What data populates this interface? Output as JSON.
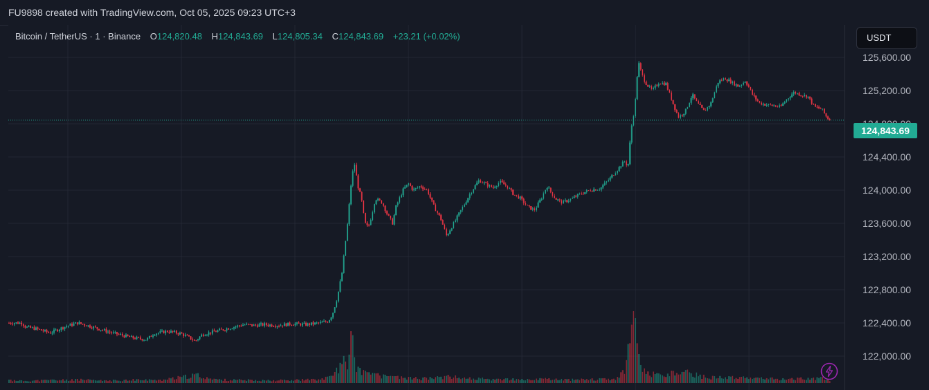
{
  "header": {
    "caption": "FU9898 created with TradingView.com, Oct 05, 2025 09:23 UTC+3"
  },
  "legend": {
    "symbol": "Bitcoin / TetherUS · 1 · Binance",
    "open_label": "O",
    "open": "124,820.48",
    "high_label": "H",
    "high": "124,843.69",
    "low_label": "L",
    "low": "124,805.34",
    "close_label": "C",
    "close": "124,843.69",
    "change": "+23.21 (+0.02%)"
  },
  "currency_button": "USDT",
  "last_price_label": "124,843.69",
  "colors": {
    "up": "#22ab94",
    "down": "#f23645",
    "background": "#161a25",
    "grid": "#232734",
    "axis_text": "#b2b5be",
    "accent_purple": "#9c27b0"
  },
  "icons": {
    "alert": "lightning-icon"
  },
  "chart_data": {
    "type": "candlestick",
    "title": "Bitcoin / TetherUS · 1 · Binance",
    "xlabel": "",
    "ylabel": "",
    "ylim": [
      121900,
      125900
    ],
    "yticks": [
      "125,600.00",
      "125,200.00",
      "124,800.00",
      "124,400.00",
      "124,000.00",
      "123,600.00",
      "123,200.00",
      "122,800.00",
      "122,400.00",
      "122,000.00"
    ],
    "ytick_values": [
      125600,
      125200,
      124800,
      124400,
      124000,
      123600,
      123200,
      122800,
      122400,
      122000
    ],
    "last_price": 124843.69,
    "grid": true,
    "close_path": [
      [
        0,
        122400
      ],
      [
        20,
        122400
      ],
      [
        25,
        122350
      ],
      [
        40,
        122330
      ],
      [
        60,
        122280
      ],
      [
        80,
        122350
      ],
      [
        100,
        122400
      ],
      [
        110,
        122380
      ],
      [
        130,
        122330
      ],
      [
        150,
        122280
      ],
      [
        165,
        122250
      ],
      [
        180,
        122220
      ],
      [
        200,
        122200
      ],
      [
        210,
        122270
      ],
      [
        230,
        122300
      ],
      [
        250,
        122270
      ],
      [
        262,
        122220
      ],
      [
        270,
        122180
      ],
      [
        280,
        122260
      ],
      [
        300,
        122300
      ],
      [
        320,
        122340
      ],
      [
        340,
        122380
      ],
      [
        355,
        122370
      ],
      [
        370,
        122380
      ],
      [
        390,
        122370
      ],
      [
        410,
        122390
      ],
      [
        430,
        122380
      ],
      [
        450,
        122400
      ],
      [
        462,
        122420
      ],
      [
        468,
        122500
      ],
      [
        475,
        122700
      ],
      [
        482,
        123000
      ],
      [
        490,
        123600
      ],
      [
        496,
        124150
      ],
      [
        500,
        124320
      ],
      [
        505,
        124050
      ],
      [
        510,
        123900
      ],
      [
        515,
        123600
      ],
      [
        520,
        123550
      ],
      [
        525,
        123700
      ],
      [
        530,
        123900
      ],
      [
        540,
        123850
      ],
      [
        548,
        123700
      ],
      [
        555,
        123600
      ],
      [
        560,
        123800
      ],
      [
        570,
        124000
      ],
      [
        578,
        124080
      ],
      [
        585,
        124000
      ],
      [
        595,
        124050
      ],
      [
        605,
        124000
      ],
      [
        615,
        123800
      ],
      [
        625,
        123650
      ],
      [
        633,
        123450
      ],
      [
        640,
        123550
      ],
      [
        650,
        123700
      ],
      [
        660,
        123850
      ],
      [
        670,
        124000
      ],
      [
        680,
        124120
      ],
      [
        690,
        124070
      ],
      [
        700,
        124030
      ],
      [
        710,
        124100
      ],
      [
        720,
        124050
      ],
      [
        730,
        123950
      ],
      [
        740,
        123900
      ],
      [
        750,
        123800
      ],
      [
        760,
        123760
      ],
      [
        770,
        123900
      ],
      [
        778,
        124050
      ],
      [
        790,
        123900
      ],
      [
        800,
        123850
      ],
      [
        815,
        123900
      ],
      [
        825,
        123950
      ],
      [
        840,
        124000
      ],
      [
        855,
        124020
      ],
      [
        870,
        124150
      ],
      [
        880,
        124250
      ],
      [
        890,
        124350
      ],
      [
        895,
        124280
      ],
      [
        900,
        124750
      ],
      [
        905,
        125000
      ],
      [
        910,
        125550
      ],
      [
        915,
        125400
      ],
      [
        920,
        125300
      ],
      [
        930,
        125200
      ],
      [
        940,
        125300
      ],
      [
        950,
        125280
      ],
      [
        960,
        125050
      ],
      [
        968,
        124880
      ],
      [
        978,
        124950
      ],
      [
        988,
        125150
      ],
      [
        995,
        125050
      ],
      [
        1005,
        124950
      ],
      [
        1015,
        125050
      ],
      [
        1025,
        125300
      ],
      [
        1035,
        125350
      ],
      [
        1045,
        125300
      ],
      [
        1055,
        125250
      ],
      [
        1065,
        125320
      ],
      [
        1075,
        125150
      ],
      [
        1085,
        125050
      ],
      [
        1095,
        125030
      ],
      [
        1105,
        125020
      ],
      [
        1115,
        125000
      ],
      [
        1125,
        125100
      ],
      [
        1135,
        125180
      ],
      [
        1145,
        125150
      ],
      [
        1155,
        125130
      ],
      [
        1165,
        125000
      ],
      [
        1175,
        124980
      ],
      [
        1182,
        124880
      ],
      [
        1188,
        124843.69
      ]
    ],
    "volume_spikes": [
      [
        0,
        5
      ],
      [
        20,
        4
      ],
      [
        60,
        5
      ],
      [
        100,
        6
      ],
      [
        140,
        4
      ],
      [
        180,
        6
      ],
      [
        220,
        5
      ],
      [
        272,
        14
      ],
      [
        300,
        6
      ],
      [
        350,
        5
      ],
      [
        400,
        5
      ],
      [
        440,
        6
      ],
      [
        466,
        10
      ],
      [
        474,
        22
      ],
      [
        480,
        30
      ],
      [
        485,
        40
      ],
      [
        488,
        28
      ],
      [
        492,
        36
      ],
      [
        496,
        88
      ],
      [
        500,
        38
      ],
      [
        505,
        24
      ],
      [
        515,
        18
      ],
      [
        530,
        14
      ],
      [
        545,
        12
      ],
      [
        560,
        10
      ],
      [
        580,
        9
      ],
      [
        600,
        8
      ],
      [
        620,
        10
      ],
      [
        635,
        12
      ],
      [
        660,
        8
      ],
      [
        680,
        8
      ],
      [
        700,
        6
      ],
      [
        720,
        7
      ],
      [
        750,
        6
      ],
      [
        780,
        7
      ],
      [
        800,
        6
      ],
      [
        830,
        6
      ],
      [
        860,
        7
      ],
      [
        880,
        9
      ],
      [
        892,
        26
      ],
      [
        896,
        62
      ],
      [
        900,
        80
      ],
      [
        904,
        110
      ],
      [
        908,
        60
      ],
      [
        912,
        36
      ],
      [
        918,
        22
      ],
      [
        925,
        16
      ],
      [
        940,
        14
      ],
      [
        960,
        18
      ],
      [
        970,
        12
      ],
      [
        980,
        20
      ],
      [
        1000,
        12
      ],
      [
        1020,
        10
      ],
      [
        1040,
        10
      ],
      [
        1060,
        9
      ],
      [
        1080,
        8
      ],
      [
        1100,
        8
      ],
      [
        1120,
        7
      ],
      [
        1140,
        8
      ],
      [
        1160,
        7
      ],
      [
        1175,
        9
      ],
      [
        1185,
        8
      ]
    ]
  }
}
